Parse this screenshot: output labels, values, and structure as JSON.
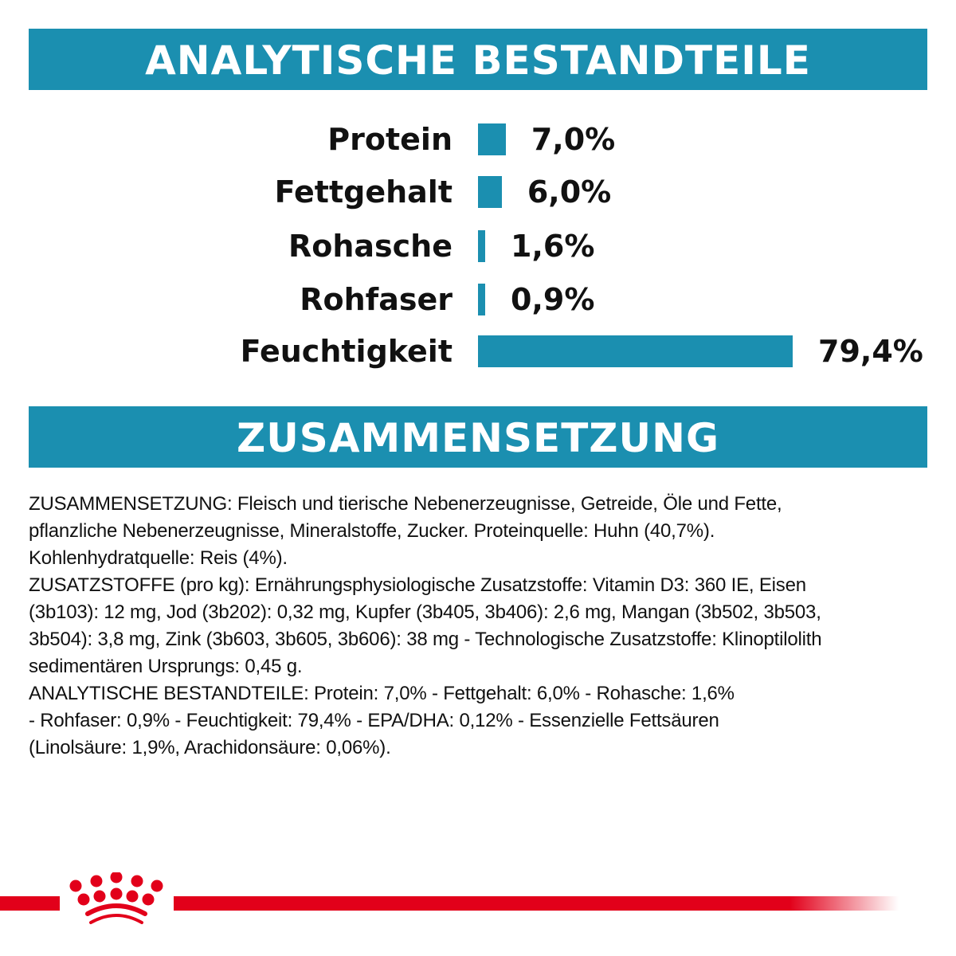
{
  "header1": "ANALYTISCHE BESTANDTEILE",
  "header2": "ZUSAMMENSETZUNG",
  "colors": {
    "accent": "#1b8fb0",
    "brand_red": "#e2001a"
  },
  "chart_data": {
    "type": "bar",
    "orientation": "horizontal",
    "categories": [
      "Protein",
      "Fettgehalt",
      "Rohasche",
      "Rohfaser",
      "Feuchtigkeit"
    ],
    "values": [
      7.0,
      6.0,
      1.6,
      0.9,
      79.4
    ],
    "value_labels": [
      "7,0%",
      "6,0%",
      "1,6%",
      "0,9%",
      "79,4%"
    ],
    "unit": "%",
    "grid": false
  },
  "composition_lines": [
    "ZUSAMMENSETZUNG: Fleisch und tierische Nebenerzeugnisse, Getreide, Öle und Fette,",
    "pflanzliche Nebenerzeugnisse, Mineralstoffe, Zucker. Proteinquelle: Huhn (40,7%).",
    "Kohlenhydratquelle: Reis (4%).",
    "ZUSATZSTOFFE (pro kg): Ernährungsphysiologische Zusatzstoffe: Vitamin D3: 360 IE, Eisen",
    "(3b103): 12 mg, Jod (3b202): 0,32 mg, Kupfer (3b405, 3b406): 2,6 mg, Mangan (3b502, 3b503,",
    "3b504): 3,8 mg, Zink (3b603, 3b605, 3b606): 38 mg - Technologische Zusatzstoffe: Klinoptilolith",
    "sedimentären Ursprungs: 0,45 g.",
    "ANALYTISCHE BESTANDTEILE: Protein: 7,0% - Fettgehalt: 6,0% - Rohasche: 1,6%",
    "- Rohfaser: 0,9% - Feuchtigkeit: 79,4% - EPA/DHA: 0,12% - Essenzielle Fettsäuren",
    "(Linolsäure: 1,9%, Arachidonsäure: 0,06%)."
  ],
  "logo": {
    "icon": "royal-canin-crown-icon"
  }
}
